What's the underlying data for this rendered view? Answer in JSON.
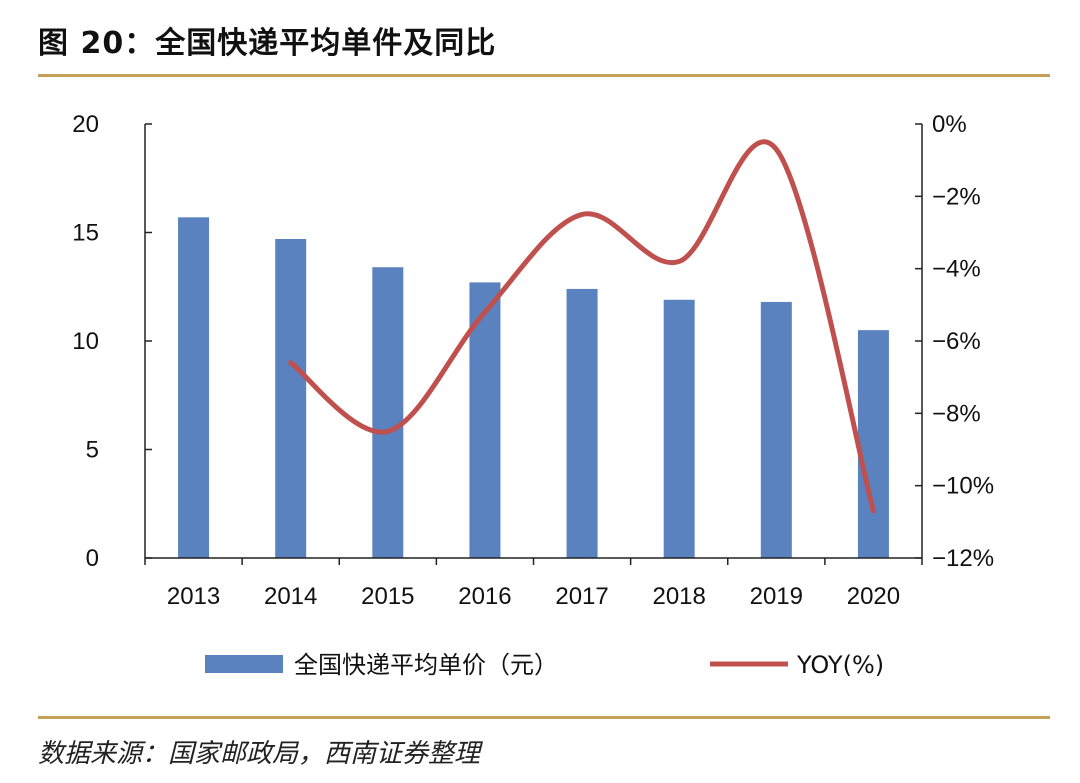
{
  "header": {
    "title": "图 20：全国快递平均单件及同比"
  },
  "source": {
    "text": "数据来源：国家邮政局，西南证券整理"
  },
  "chart_data": {
    "type": "bar",
    "categories": [
      "2013",
      "2014",
      "2015",
      "2016",
      "2017",
      "2018",
      "2019",
      "2020"
    ],
    "series": [
      {
        "name": "全国快递平均单价（元）",
        "type": "bar",
        "axis": "left",
        "values": [
          15.7,
          14.7,
          13.4,
          12.7,
          12.4,
          11.9,
          11.8,
          10.5
        ]
      },
      {
        "name": "YOY(%)",
        "type": "line",
        "axis": "right",
        "values": [
          null,
          -6.6,
          -8.5,
          -5.2,
          -2.5,
          -3.8,
          -0.7,
          -10.7
        ]
      }
    ],
    "y_left": {
      "ylim": [
        0,
        20
      ],
      "ticks": [
        "0",
        "5",
        "10",
        "15",
        "20"
      ]
    },
    "y_right": {
      "ylim": [
        -12,
        0
      ],
      "ticks": [
        "0%",
        "−2%",
        "−4%",
        "−6%",
        "−8%",
        "−10%",
        "−12%"
      ]
    },
    "colors": {
      "bar": "#5a82bf",
      "line": "#c0504d",
      "rule": "#c5a059"
    },
    "legend": "bottom",
    "grid": false
  }
}
